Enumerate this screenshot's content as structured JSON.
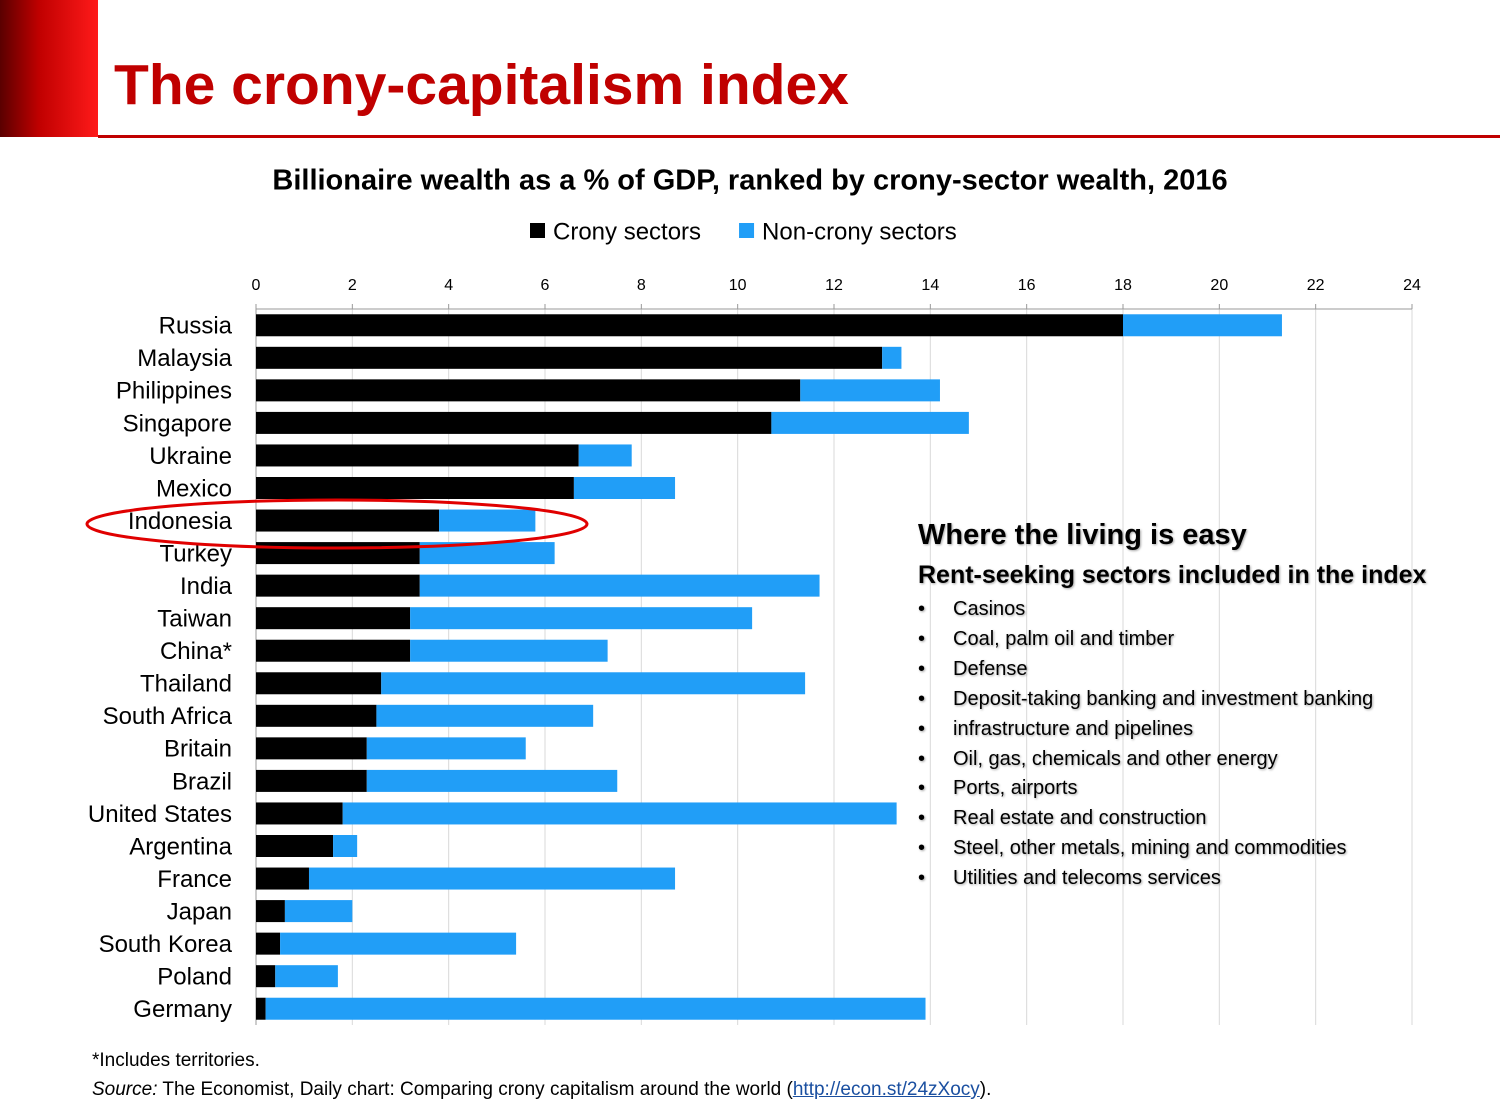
{
  "slide_title": "The crony-capitalism index",
  "chart_data": {
    "type": "bar",
    "orientation": "horizontal",
    "stacked": true,
    "title": "Billionaire wealth as a % of GDP, ranked by crony-sector wealth, 2016",
    "categories": [
      "Russia",
      "Malaysia",
      "Philippines",
      "Singapore",
      "Ukraine",
      "Mexico",
      "Indonesia",
      "Turkey",
      "India",
      "Taiwan",
      "China*",
      "Thailand",
      "South Africa",
      "Britain",
      "Brazil",
      "United States",
      "Argentina",
      "France",
      "Japan",
      "South Korea",
      "Poland",
      "Germany"
    ],
    "series": [
      {
        "name": "Crony sectors",
        "color": "#000000",
        "values": [
          18.0,
          13.0,
          11.3,
          10.7,
          6.7,
          6.6,
          3.8,
          3.4,
          3.4,
          3.2,
          3.2,
          2.6,
          2.5,
          2.3,
          2.3,
          1.8,
          1.6,
          1.1,
          0.6,
          0.5,
          0.4,
          0.2
        ]
      },
      {
        "name": "Non-crony sectors",
        "color": "#219ef7",
        "values": [
          3.3,
          0.4,
          2.9,
          4.1,
          1.1,
          2.1,
          2.0,
          2.8,
          8.3,
          7.1,
          4.1,
          8.8,
          4.5,
          3.3,
          5.2,
          11.5,
          0.5,
          7.6,
          1.4,
          4.9,
          1.3,
          13.7
        ]
      }
    ],
    "xlim": [
      0,
      24
    ],
    "xticks": [
      0,
      2,
      4,
      6,
      8,
      10,
      12,
      14,
      16,
      18,
      20,
      22,
      24
    ],
    "grid": true,
    "legend": "top"
  },
  "annotation": {
    "title": "Where the living is easy",
    "subtitle": "Rent-seeking sectors included in the index",
    "items": [
      "Casinos",
      "Coal, palm oil and timber",
      "Defense",
      "Deposit-taking banking and investment banking",
      "infrastructure and pipelines",
      "Oil, gas, chemicals and other energy",
      "Ports, airports",
      "Real estate and construction",
      "Steel, other metals, mining and commodities",
      "Utilities and telecoms services"
    ]
  },
  "footnote": "*Includes territories.",
  "source": {
    "label": "Source:",
    "text": " The Economist, Daily chart: Comparing crony capitalism around the world (",
    "link": "http://econ.st/24zXocy",
    "end": ")."
  }
}
